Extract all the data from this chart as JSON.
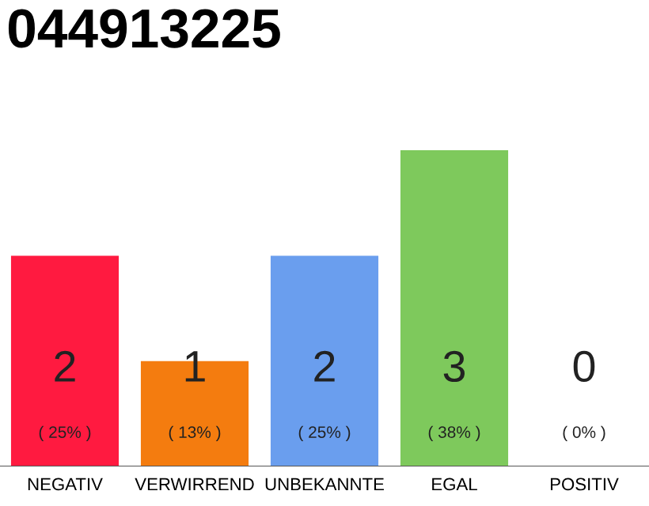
{
  "chart_data": {
    "type": "bar",
    "title": "044913225",
    "categories": [
      "NEGATIV",
      "VERWIRREND",
      "UNBEKANNTE",
      "EGAL",
      "POSITIV"
    ],
    "values": [
      2,
      1,
      2,
      3,
      0
    ],
    "colors": [
      "#ff1a40",
      "#f47c0f",
      "#6a9eee",
      "#7ec95c",
      "#cccccc"
    ],
    "value_labels": [
      "2\n( 25% )",
      "1\n( 13% )",
      "2\n( 25% )",
      "3\n( 38% )",
      "0\n( 0% )"
    ],
    "grid": false,
    "legend": false
  }
}
